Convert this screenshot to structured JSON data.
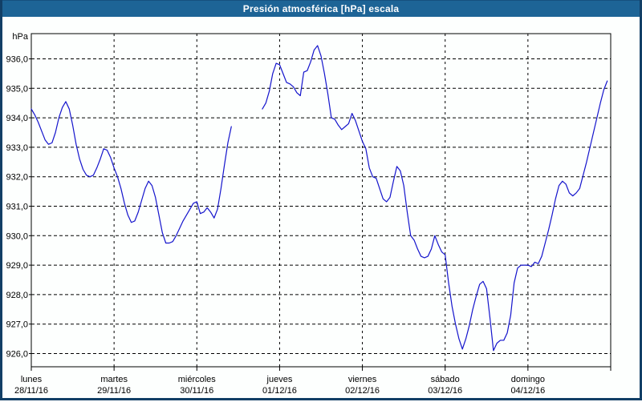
{
  "window": {
    "title": "Presión atmosférica [hPa] escala"
  },
  "chart_data": {
    "type": "line",
    "title": "Presión atmosférica [hPa] escala",
    "unit_label": "hPa",
    "grid": "dashed-black",
    "legend": "none",
    "ylim": [
      925.55,
      936.85
    ],
    "y_ticks": [
      {
        "value": 936,
        "label": "936,0"
      },
      {
        "value": 935,
        "label": "935,0"
      },
      {
        "value": 934,
        "label": "934,0"
      },
      {
        "value": 933,
        "label": "933,0"
      },
      {
        "value": 932,
        "label": "932,0"
      },
      {
        "value": 931,
        "label": "931,0"
      },
      {
        "value": 930,
        "label": "930,0"
      },
      {
        "value": 929,
        "label": "929,0"
      },
      {
        "value": 928,
        "label": "928,0"
      },
      {
        "value": 927,
        "label": "927,0"
      },
      {
        "value": 926,
        "label": "926,0"
      }
    ],
    "x_days": [
      {
        "name": "lunes",
        "date": "28/11/16"
      },
      {
        "name": "martes",
        "date": "29/11/16"
      },
      {
        "name": "miércoles",
        "date": "30/11/16"
      },
      {
        "name": "jueves",
        "date": "01/12/16"
      },
      {
        "name": "viernes",
        "date": "02/12/16"
      },
      {
        "name": "sábado",
        "date": "03/12/16"
      },
      {
        "name": "domingo",
        "date": "04/12/16"
      }
    ],
    "samples_per_day": 24,
    "series": [
      {
        "name": "Presión atmosférica",
        "color": "#1414cc",
        "values_hourly": [
          934.3,
          934.1,
          933.85,
          933.55,
          933.25,
          933.1,
          933.15,
          933.5,
          934.0,
          934.35,
          934.55,
          934.3,
          933.75,
          933.1,
          932.6,
          932.25,
          932.05,
          932.0,
          932.05,
          932.3,
          932.6,
          932.95,
          932.9,
          932.65,
          932.3,
          932.0,
          931.6,
          931.1,
          930.7,
          930.45,
          930.5,
          930.8,
          931.2,
          931.6,
          931.85,
          931.7,
          931.3,
          930.7,
          930.1,
          929.75,
          929.75,
          929.8,
          930.0,
          930.25,
          930.5,
          930.7,
          930.9,
          931.1,
          931.15,
          930.75,
          930.8,
          930.95,
          930.8,
          930.6,
          930.9,
          931.6,
          932.4,
          933.15,
          933.7,
          null,
          null,
          null,
          null,
          null,
          null,
          null,
          null,
          934.3,
          934.5,
          934.9,
          935.5,
          935.85,
          935.8,
          935.5,
          935.2,
          935.15,
          935.05,
          934.85,
          934.75,
          935.55,
          935.6,
          935.9,
          936.3,
          936.45,
          936.1,
          935.5,
          934.8,
          934.0,
          933.95,
          933.75,
          933.6,
          933.7,
          933.8,
          934.15,
          933.9,
          933.55,
          933.2,
          932.95,
          932.3,
          932.0,
          931.95,
          931.6,
          931.25,
          931.15,
          931.3,
          931.85,
          932.35,
          932.2,
          931.7,
          930.8,
          930.0,
          929.85,
          929.55,
          929.3,
          929.25,
          929.3,
          929.55,
          930.0,
          929.7,
          929.45,
          929.35,
          928.4,
          927.6,
          927.0,
          926.5,
          926.15,
          926.5,
          926.95,
          927.5,
          927.95,
          928.35,
          928.45,
          928.2,
          927.2,
          926.1,
          926.35,
          926.45,
          926.45,
          926.7,
          927.3,
          928.4,
          928.9,
          929.0,
          929.0,
          929.0,
          928.95,
          929.1,
          929.05,
          929.3,
          929.75,
          930.2,
          930.7,
          931.25,
          931.7,
          931.85,
          931.75,
          931.45,
          931.35,
          931.45,
          931.6,
          932.05,
          932.5,
          933.0,
          933.5,
          934.0,
          934.5,
          934.95,
          935.25
        ]
      }
    ],
    "colors": {
      "line": "#1414cc",
      "title_bar": "#1d6496",
      "window_border": "#123f66",
      "plot_background": "#ffffff",
      "grid": "#000000"
    }
  }
}
